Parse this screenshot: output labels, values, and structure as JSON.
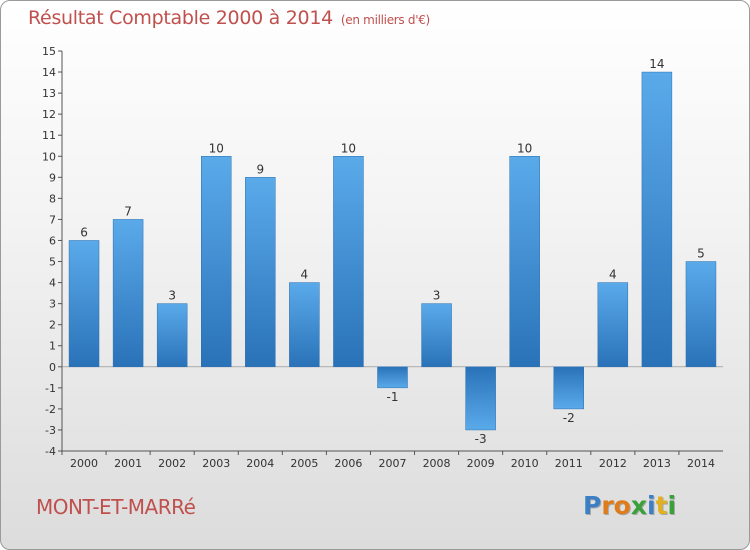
{
  "header": {
    "title": "Résultat Comptable 2000 à 2014",
    "subtitle": "(en milliers d'€)"
  },
  "footer": {
    "commune": "MONT-ET-MARRé",
    "logo_letters": [
      "P",
      "r",
      "o",
      "x",
      "i",
      "t",
      "i"
    ],
    "logo_colors": [
      "#3d7fc4",
      "#e07b1a",
      "#e07b1a",
      "#3aa13a",
      "#3d7fc4",
      "#e0b020",
      "#3aa13a"
    ]
  },
  "chart_data": {
    "type": "bar",
    "title": "Résultat Comptable 2000 à 2014",
    "subtitle": "(en milliers d'€)",
    "categories": [
      "2000",
      "2001",
      "2002",
      "2003",
      "2004",
      "2005",
      "2006",
      "2007",
      "2008",
      "2009",
      "2010",
      "2011",
      "2012",
      "2013",
      "2014"
    ],
    "values": [
      6,
      7,
      3,
      10,
      9,
      4,
      10,
      -1,
      3,
      -3,
      10,
      -2,
      4,
      14,
      5
    ],
    "data_labels": [
      "6",
      "7",
      "3",
      "10",
      "9",
      "4",
      "10",
      "-1",
      "3",
      "-3",
      "10",
      "-2",
      "4",
      "14",
      "5"
    ],
    "y_ticks": [
      "-4",
      "-3",
      "-2",
      "-1",
      "0",
      "1",
      "2",
      "3",
      "4",
      "5",
      "6",
      "7",
      "8",
      "9",
      "10",
      "11",
      "12",
      "13",
      "14",
      "15"
    ],
    "y_tick_values": [
      -4,
      -3,
      -2,
      -1,
      0,
      1,
      2,
      3,
      4,
      5,
      6,
      7,
      8,
      9,
      10,
      11,
      12,
      13,
      14,
      15
    ],
    "ylim": [
      -4,
      15
    ],
    "xlabel": "",
    "ylabel": "",
    "grid": false,
    "bar_color": "#3f8fd2",
    "bar_color_light": "#5aaaea",
    "bar_color_dark": "#2a72b8"
  }
}
